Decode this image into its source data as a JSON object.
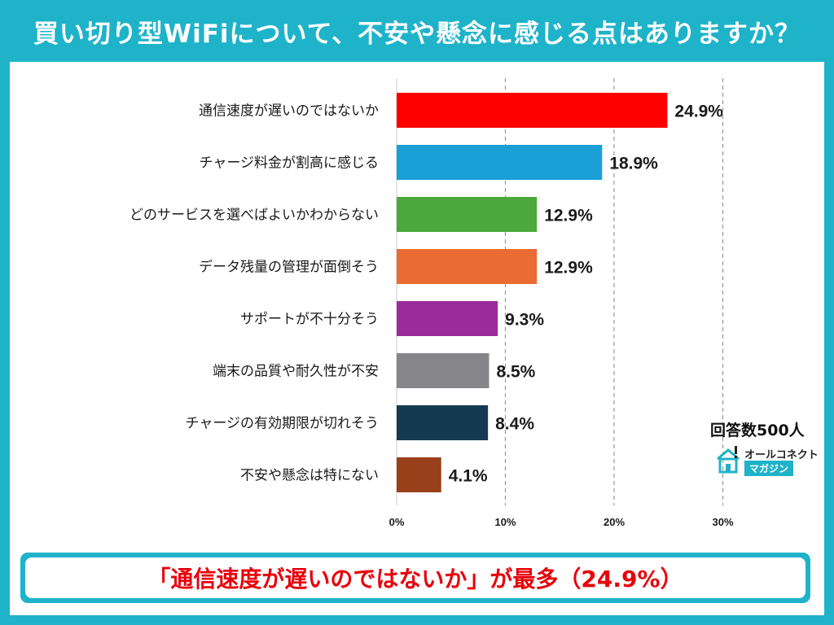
{
  "title": "買い切り型WiFiについて、不安や懸念に感じる点はありますか？",
  "respondents": "回答数500人",
  "logo": {
    "name": "オールコネクト",
    "sub": "マガジン",
    "icon": "house-wifi-icon"
  },
  "conclusion": "「通信速度が遅いのではないか」が最多（24.9%）",
  "colors": {
    "frame": "#1fb3c9",
    "accent_text": "#e8000a"
  },
  "chart_data": {
    "type": "bar",
    "orientation": "horizontal",
    "categories": [
      "通信速度が遅いのではないか",
      "チャージ料金が割高に感じる",
      "どのサービスを選べばよいかわからない",
      "データ残量の管理が面倒そう",
      "サポートが不十分そう",
      "端末の品質や耐久性が不安",
      "チャージの有効期限が切れそう",
      "不安や懸念は特にない"
    ],
    "values": [
      24.9,
      18.9,
      12.9,
      12.9,
      9.3,
      8.5,
      8.4,
      4.1
    ],
    "value_labels": [
      "24.9%",
      "18.9%",
      "12.9%",
      "12.9%",
      "9.3%",
      "8.5%",
      "8.4%",
      "4.1%"
    ],
    "colors": [
      "#ff0000",
      "#1a9fd6",
      "#4aa93a",
      "#eb6b35",
      "#9b2b9b",
      "#86858a",
      "#143a52",
      "#99401a"
    ],
    "xlim": [
      0,
      30
    ],
    "xticks": [
      0,
      10,
      20,
      30
    ],
    "xtick_labels": [
      "0%",
      "10%",
      "20%",
      "30%"
    ],
    "grid": "vertical dashed"
  }
}
